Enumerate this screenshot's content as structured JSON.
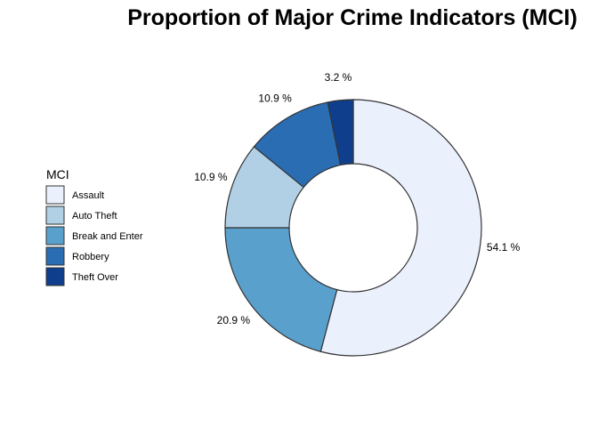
{
  "chart_data": {
    "type": "pie",
    "title": "Proportion of Major Crime Indicators (MCI)",
    "legend": {
      "title": "MCI",
      "position": "left"
    },
    "categories": [
      "Assault",
      "Auto Theft",
      "Break and Enter",
      "Robbery",
      "Theft Over"
    ],
    "values": [
      54.1,
      10.9,
      20.9,
      10.9,
      3.2
    ],
    "value_labels": [
      "54.1 %",
      "10.9 %",
      "20.9 %",
      "10.9 %",
      "3.2 %"
    ],
    "slice_order_clockwise_from_top": [
      "Assault",
      "Break and Enter",
      "Auto Theft",
      "Robbery",
      "Theft Over"
    ],
    "donut": true,
    "colors": {
      "Assault": "#eaf0fc",
      "Auto Theft": "#b1cfe5",
      "Break and Enter": "#5aa0cd",
      "Robbery": "#2a6db3",
      "Theft Over": "#0f3f8c"
    },
    "stroke_color": "#333333"
  }
}
